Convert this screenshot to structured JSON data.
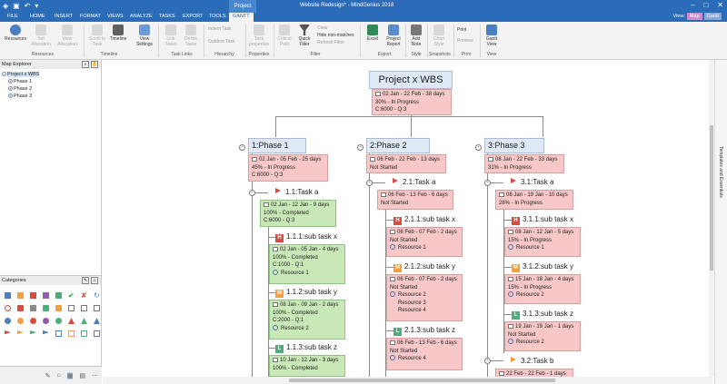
{
  "titlebar": {
    "title": "Website Redesign* - MindGenius 2018",
    "context_tab": "Project"
  },
  "tabs": [
    "FILE",
    "HOME",
    "INSERT",
    "FORMAT",
    "VIEWS",
    "ANALYZE",
    "TASKS",
    "EXPORT",
    "TOOLS",
    "GANTT"
  ],
  "view_switch": {
    "label": "View:",
    "map": "Map",
    "gantt": "Gantt"
  },
  "ribbon": {
    "resources": {
      "label": "Resources",
      "set_allocation": "Set Allocation",
      "view_allocation": "View Allocation",
      "group": "Resources"
    },
    "timeline": {
      "scroll_to_task": "Scroll to Task",
      "timeline": "Timeline",
      "group": "Timeline"
    },
    "view_settings": {
      "label": "View Settings"
    },
    "task_links": {
      "link_tasks": "Link Tasks",
      "delink_tasks": "Delink Tasks",
      "group": "Task Links"
    },
    "hierarchy": {
      "indent": "Indent Task",
      "outdent": "Outdent Task",
      "group": "Hierarchy"
    },
    "properties": {
      "task_properties": "Task properties",
      "group": "Properties"
    },
    "filter": {
      "critical_path": "Critical Path",
      "quick_filter": "Quick Filter",
      "clear": "Clear",
      "hide_non_matches": "Hide non-matches",
      "refresh_filter": "Refresh Filter",
      "group": "Filter"
    },
    "export": {
      "excel": "Excel",
      "project_report": "Project Report",
      "group": "Export"
    },
    "style": {
      "add_note": "Add Note",
      "group": "Style"
    },
    "snapshots": {
      "chart_style": "Chart Style",
      "group": "Snapshots"
    },
    "print": {
      "print": "Print",
      "preview": "Preview",
      "group": "Print"
    },
    "view": {
      "gantt_view": "Gantt View",
      "group": "View"
    }
  },
  "map_explorer": {
    "title": "Map Explorer",
    "items": [
      "Project x WBS",
      "Phase 1",
      "Phase 2",
      "Phase 3"
    ]
  },
  "categories": {
    "title": "Categories"
  },
  "side_panel": "Templates and Essentials",
  "map": {
    "root": {
      "title": "Project x WBS",
      "lines": [
        "02 Jan - 22 Feb - 38 days",
        "30% - In Progress",
        "C:6000 - Q:3"
      ]
    },
    "phase1": {
      "title": "1:Phase 1",
      "lines": [
        "02 Jan - 05 Feb - 25 days",
        "45% - In Progress",
        "C:6000 - Q:3"
      ]
    },
    "task_a": {
      "title": "1.1:Task a",
      "lines": [
        "02 Jan - 12 Jan - 9 days",
        "100% - Completed",
        "C:6000 - Q:3"
      ]
    },
    "sub_1_1_1": {
      "title": "1.1.1:sub task x",
      "lines": [
        "02 Jan - 05 Jan - 4 days",
        "100% - Completed",
        "C:1000 - Q:1",
        "Resource 1"
      ]
    },
    "sub_1_1_2": {
      "title": "1.1.2:sub task y",
      "lines": [
        "08 Jan - 09 Jan - 2 days",
        "100% - Completed",
        "C:2000 - Q:1",
        "Resource 2"
      ]
    },
    "sub_1_1_3": {
      "title": "1.1.3:sub task z",
      "lines": [
        "10 Jan - 12 Jan - 3 days",
        "100% - Completed"
      ]
    },
    "phase2": {
      "title": "2:Phase 2",
      "lines": [
        "06 Feb - 22 Feb - 13 days",
        "Not Started"
      ]
    },
    "task_2_1": {
      "title": "2.1:Task a",
      "lines": [
        "06 Feb - 13 Feb - 6 days",
        "Not Started"
      ]
    },
    "sub_2_1_1": {
      "title": "2.1.1:sub task x",
      "lines": [
        "06 Feb - 07 Feb - 2 days",
        "Not Started",
        "Resource 1"
      ]
    },
    "sub_2_1_2": {
      "title": "2.1.2:sub task y",
      "lines": [
        "06 Feb - 07 Feb - 2 days",
        "Not Started",
        "Resource 2",
        "Resource 3",
        "Resource 4"
      ]
    },
    "sub_2_1_3": {
      "title": "2.1.3:sub task z",
      "lines": [
        "06 Feb - 13 Feb - 6 days",
        "Not Started",
        "Resource 4"
      ]
    },
    "phase3": {
      "title": "3:Phase 3",
      "lines": [
        "08 Jan - 22 Feb - 33 days",
        "31% - In Progress"
      ]
    },
    "task_3_1": {
      "title": "3.1:Task a",
      "lines": [
        "08 Jan - 19 Jan - 10 days",
        "28% - In Progress"
      ]
    },
    "sub_3_1_1": {
      "title": "3.1.1:sub task x",
      "lines": [
        "08 Jan - 12 Jan - 5 days",
        "15% - In Progress",
        "Resource 1"
      ]
    },
    "sub_3_1_2": {
      "title": "3.1.2:sub task y",
      "lines": [
        "15 Jan - 18 Jan - 4 days",
        "15% - In Progress",
        "Resource 2"
      ]
    },
    "sub_3_1_3": {
      "title": "3.1.3:sub task z",
      "lines": [
        "19 Jan - 19 Jan - 1 days",
        "Not Started",
        "Resource 2"
      ]
    },
    "task_3_2": {
      "title": "3.2:Task b",
      "lines": [
        "22 Feb - 22 Feb - 1 days"
      ]
    }
  }
}
